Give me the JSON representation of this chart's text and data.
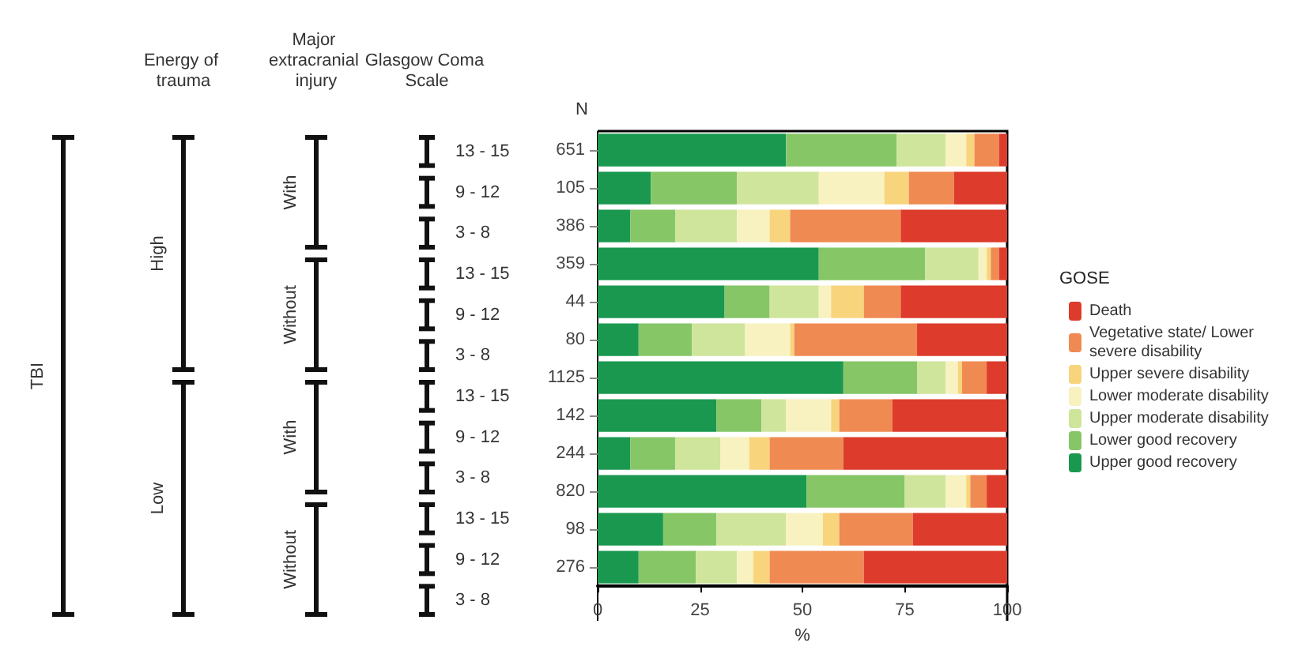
{
  "chart_data": {
    "type": "bar",
    "orientation": "horizontal",
    "stacked": true,
    "categories": [
      "651",
      "105",
      "386",
      "359",
      "44",
      "80",
      "1125",
      "142",
      "244",
      "820",
      "98",
      "276"
    ],
    "series": [
      {
        "name": "Upper good recovery",
        "color": "#1a9850",
        "values": [
          46,
          13,
          8,
          54,
          31,
          10,
          60,
          29,
          8,
          51,
          16,
          10
        ]
      },
      {
        "name": "Lower good recovery",
        "color": "#86c667",
        "values": [
          27,
          21,
          11,
          26,
          11,
          13,
          18,
          11,
          11,
          24,
          13,
          14
        ]
      },
      {
        "name": "Upper moderate disability",
        "color": "#cfe59b",
        "values": [
          12,
          20,
          15,
          13,
          12,
          13,
          7,
          6,
          11,
          10,
          17,
          10
        ]
      },
      {
        "name": "Lower moderate disability",
        "color": "#f7f2c0",
        "values": [
          5,
          16,
          8,
          2,
          3,
          11,
          3,
          11,
          7,
          5,
          9,
          4
        ]
      },
      {
        "name": "Upper severe disability",
        "color": "#f8d47c",
        "values": [
          2,
          6,
          5,
          1,
          8,
          1,
          1,
          2,
          5,
          1,
          4,
          4
        ]
      },
      {
        "name": "Vegetative state/ Lower severe disability",
        "color": "#ef8a52",
        "values": [
          6,
          11,
          27,
          2,
          9,
          30,
          6,
          13,
          18,
          4,
          18,
          23
        ]
      },
      {
        "name": "Death",
        "color": "#dd3b2b",
        "values": [
          2,
          13,
          26,
          2,
          26,
          22,
          5,
          28,
          40,
          5,
          23,
          35
        ]
      }
    ],
    "xlim": [
      0,
      100
    ],
    "xticks": [
      0,
      25,
      50,
      75,
      100
    ],
    "xlabel": "%",
    "ylabel": "N",
    "legend_title": "GOSE",
    "legend": "right",
    "grid": false,
    "annotations": [
      "Energy of trauma",
      "Major extracranial injury",
      "Glasgow Coma Scale",
      "TBI",
      "High",
      "Low",
      "With",
      "Without",
      "With",
      "Without",
      "13 - 15",
      "9 - 12",
      "3 - 8",
      "13 - 15",
      "9 - 12",
      "3 - 8",
      "13 - 15",
      "9 - 12",
      "3 - 8",
      "13 - 15",
      "9 - 12",
      "3 - 8"
    ]
  }
}
